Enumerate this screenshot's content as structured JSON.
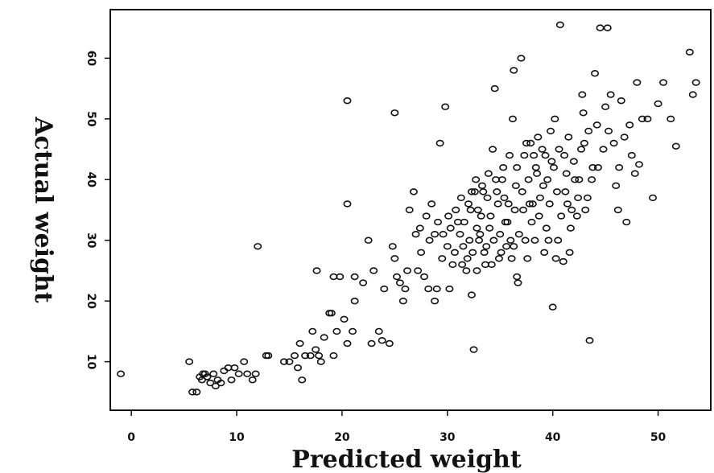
{
  "chart_data": {
    "type": "scatter",
    "title": "",
    "xlabel": "Predicted weight",
    "ylabel": "Actual weight",
    "xlim": [
      -2,
      55
    ],
    "ylim": [
      2,
      68
    ],
    "xticks": [
      0,
      10,
      20,
      30,
      40,
      50
    ],
    "yticks": [
      10,
      20,
      30,
      40,
      50,
      60
    ],
    "xtick_labels": [
      "0",
      "10",
      "20",
      "30",
      "40",
      "50"
    ],
    "ytick_labels": [
      "10",
      "20",
      "30",
      "40",
      "50",
      "60"
    ],
    "grid": false,
    "marker": "open-circle",
    "series": [
      {
        "name": "",
        "points": [
          [
            -1,
            8
          ],
          [
            5.5,
            10
          ],
          [
            5.8,
            5
          ],
          [
            6.2,
            5
          ],
          [
            6.5,
            7.5
          ],
          [
            6.7,
            7
          ],
          [
            6.8,
            8
          ],
          [
            7,
            8
          ],
          [
            7.2,
            7.5
          ],
          [
            7.5,
            6.5
          ],
          [
            7.8,
            8
          ],
          [
            8,
            6
          ],
          [
            8.2,
            7
          ],
          [
            8.5,
            6.5
          ],
          [
            8.8,
            8.5
          ],
          [
            9.2,
            9
          ],
          [
            9.5,
            7
          ],
          [
            9.8,
            9
          ],
          [
            10.2,
            8
          ],
          [
            10.7,
            10
          ],
          [
            11,
            8
          ],
          [
            11.5,
            7
          ],
          [
            11.8,
            8
          ],
          [
            12,
            29
          ],
          [
            12.8,
            11
          ],
          [
            13,
            11
          ],
          [
            14.5,
            10
          ],
          [
            15,
            10
          ],
          [
            15.5,
            11
          ],
          [
            15.8,
            9
          ],
          [
            16,
            13
          ],
          [
            16.2,
            7
          ],
          [
            16.5,
            11
          ],
          [
            17,
            11
          ],
          [
            17.2,
            15
          ],
          [
            17.5,
            12
          ],
          [
            17.8,
            11
          ],
          [
            17.6,
            25
          ],
          [
            18,
            10
          ],
          [
            18.3,
            14
          ],
          [
            18.8,
            18
          ],
          [
            19,
            18
          ],
          [
            19.2,
            11
          ],
          [
            19.5,
            15
          ],
          [
            19.8,
            24
          ],
          [
            19.2,
            24
          ],
          [
            20.2,
            17
          ],
          [
            20.5,
            13
          ],
          [
            20.5,
            36
          ],
          [
            20.5,
            53
          ],
          [
            21,
            15
          ],
          [
            21.2,
            20
          ],
          [
            21.2,
            24
          ],
          [
            22,
            23
          ],
          [
            22.5,
            30
          ],
          [
            22.8,
            13
          ],
          [
            23,
            25
          ],
          [
            23.5,
            15
          ],
          [
            23.8,
            13.5
          ],
          [
            24,
            22
          ],
          [
            24.5,
            13
          ],
          [
            24.8,
            29
          ],
          [
            25,
            51
          ],
          [
            25,
            27
          ],
          [
            25.2,
            24
          ],
          [
            25.5,
            23
          ],
          [
            25.8,
            20
          ],
          [
            26,
            22
          ],
          [
            26.2,
            25
          ],
          [
            26.4,
            35
          ],
          [
            26.8,
            38
          ],
          [
            27,
            31
          ],
          [
            27.2,
            25
          ],
          [
            27.5,
            28
          ],
          [
            27.8,
            24
          ],
          [
            28,
            34
          ],
          [
            28.2,
            22
          ],
          [
            28.5,
            36
          ],
          [
            28.8,
            20
          ],
          [
            28.8,
            31
          ],
          [
            29,
            22
          ],
          [
            29.3,
            46
          ],
          [
            29.5,
            27
          ],
          [
            29.8,
            52
          ],
          [
            30,
            29
          ],
          [
            30.2,
            22
          ],
          [
            30.5,
            26
          ],
          [
            31,
            33
          ],
          [
            31.2,
            31
          ],
          [
            31.5,
            29
          ],
          [
            31.8,
            25
          ],
          [
            32,
            36
          ],
          [
            32.2,
            35
          ],
          [
            32.3,
            21
          ],
          [
            32.5,
            12
          ],
          [
            32.6,
            38
          ],
          [
            32.8,
            32
          ],
          [
            33,
            30
          ],
          [
            33.2,
            34
          ],
          [
            33.5,
            28
          ],
          [
            33.8,
            37
          ],
          [
            34,
            32
          ],
          [
            34.2,
            26
          ],
          [
            34.3,
            45
          ],
          [
            34.5,
            55
          ],
          [
            34.7,
            38
          ],
          [
            35,
            31
          ],
          [
            35.2,
            40
          ],
          [
            35.5,
            33
          ],
          [
            35.8,
            36
          ],
          [
            36,
            30
          ],
          [
            36.2,
            50
          ],
          [
            36.3,
            58
          ],
          [
            36.5,
            39
          ],
          [
            36.6,
            24
          ],
          [
            36.7,
            23
          ],
          [
            37,
            60
          ],
          [
            37.2,
            35
          ],
          [
            37.5,
            46
          ],
          [
            37.8,
            36
          ],
          [
            38,
            33
          ],
          [
            38.2,
            44
          ],
          [
            38.5,
            41
          ],
          [
            38.8,
            37
          ],
          [
            39,
            45
          ],
          [
            39.2,
            28
          ],
          [
            39.5,
            40
          ],
          [
            39.8,
            48
          ],
          [
            40,
            19
          ],
          [
            40.2,
            50
          ],
          [
            40.5,
            30
          ],
          [
            40.7,
            65.5
          ],
          [
            41,
            26.5
          ],
          [
            41.2,
            38
          ],
          [
            41.5,
            47
          ],
          [
            41.8,
            35
          ],
          [
            42,
            43
          ],
          [
            42.5,
            40
          ],
          [
            42.8,
            54
          ],
          [
            43,
            46
          ],
          [
            43.3,
            37
          ],
          [
            43.5,
            13.5
          ],
          [
            43.8,
            42
          ],
          [
            44,
            57.5
          ],
          [
            44.2,
            49
          ],
          [
            44.5,
            65
          ],
          [
            45,
            52
          ],
          [
            45.2,
            65
          ],
          [
            45.5,
            54
          ],
          [
            45.8,
            46
          ],
          [
            46,
            39
          ],
          [
            46.2,
            35
          ],
          [
            46.5,
            53
          ],
          [
            46.8,
            47
          ],
          [
            47,
            33
          ],
          [
            47.5,
            44
          ],
          [
            47.8,
            41
          ],
          [
            48,
            56
          ],
          [
            48.2,
            42.5
          ],
          [
            48.5,
            50
          ],
          [
            49,
            50
          ],
          [
            49.5,
            37
          ],
          [
            50,
            52.5
          ],
          [
            50.5,
            56
          ],
          [
            51.2,
            50
          ],
          [
            51.7,
            45.5
          ],
          [
            53,
            61
          ],
          [
            53.3,
            54
          ],
          [
            53.6,
            56
          ],
          [
            30.3,
            32
          ],
          [
            30.8,
            35
          ],
          [
            31.3,
            37
          ],
          [
            31.6,
            33
          ],
          [
            32.1,
            30
          ],
          [
            32.4,
            28
          ],
          [
            32.9,
            35
          ],
          [
            33.1,
            31
          ],
          [
            33.4,
            38
          ],
          [
            33.7,
            29
          ],
          [
            34.1,
            34
          ],
          [
            34.4,
            30
          ],
          [
            34.8,
            36
          ],
          [
            35.1,
            28
          ],
          [
            35.4,
            37
          ],
          [
            35.7,
            33
          ],
          [
            36.1,
            27
          ],
          [
            36.4,
            35
          ],
          [
            36.8,
            31
          ],
          [
            37.1,
            38
          ],
          [
            37.4,
            30
          ],
          [
            37.7,
            40
          ],
          [
            38.1,
            36
          ],
          [
            38.4,
            42
          ],
          [
            38.7,
            34
          ],
          [
            39.1,
            39
          ],
          [
            39.4,
            32
          ],
          [
            39.7,
            36
          ],
          [
            40.1,
            42
          ],
          [
            40.4,
            38
          ],
          [
            40.8,
            34
          ],
          [
            41.1,
            44
          ],
          [
            41.4,
            36
          ],
          [
            41.7,
            32
          ],
          [
            42.1,
            40
          ],
          [
            42.4,
            37
          ],
          [
            42.7,
            45
          ],
          [
            43.1,
            35
          ],
          [
            43.4,
            48
          ],
          [
            43.7,
            40
          ],
          [
            32.3,
            38
          ],
          [
            32.7,
            40
          ],
          [
            33.3,
            39
          ],
          [
            33.9,
            41
          ],
          [
            34.6,
            40
          ],
          [
            35.3,
            42
          ],
          [
            35.9,
            44
          ],
          [
            36.6,
            42
          ],
          [
            37.3,
            44
          ],
          [
            37.9,
            46
          ],
          [
            38.6,
            47
          ],
          [
            39.3,
            44
          ],
          [
            39.9,
            43
          ],
          [
            40.6,
            45
          ],
          [
            41.3,
            41
          ],
          [
            27.4,
            32
          ],
          [
            28.3,
            30
          ],
          [
            29.1,
            33
          ],
          [
            29.6,
            31
          ],
          [
            30.1,
            34
          ],
          [
            30.7,
            28
          ],
          [
            31.4,
            26
          ],
          [
            31.9,
            27
          ],
          [
            32.8,
            25
          ],
          [
            33.6,
            26
          ],
          [
            34.9,
            27
          ],
          [
            35.6,
            29
          ],
          [
            36.3,
            29
          ],
          [
            37.6,
            27
          ],
          [
            38.3,
            30
          ],
          [
            39.6,
            30
          ],
          [
            40.3,
            27
          ],
          [
            41.6,
            28
          ],
          [
            42.3,
            34
          ],
          [
            44.3,
            42
          ],
          [
            44.8,
            45
          ],
          [
            45.3,
            48
          ],
          [
            46.3,
            42
          ],
          [
            47.3,
            49
          ],
          [
            42.9,
            51
          ]
        ]
      }
    ]
  }
}
